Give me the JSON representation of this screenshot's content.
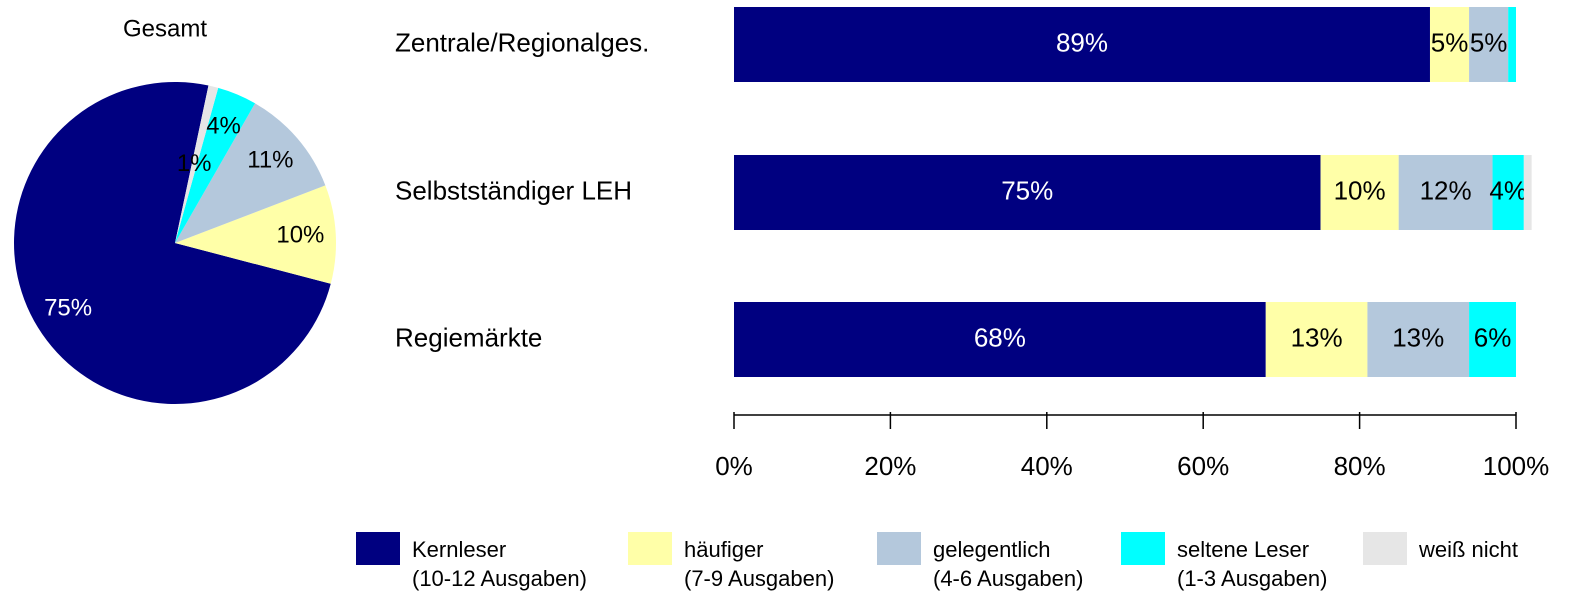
{
  "chart_data": [
    {
      "type": "pie",
      "title": "Gesamt",
      "categories": [
        "Kernleser\n(10-12 Ausgaben)",
        "häufiger\n(7-9 Ausgaben)",
        "gelegentlich\n(4-6 Ausgaben)",
        "seltene Leser\n(1-3 Ausgaben)",
        "weiß nicht"
      ],
      "values": [
        75,
        10,
        11,
        4,
        1
      ],
      "value_labels": [
        "75%",
        "10%",
        "11%",
        "4%",
        "1%"
      ],
      "colors": [
        "#000080",
        "#ffffa8",
        "#b4c8dc",
        "#00ffff",
        "#e6e6e6"
      ]
    },
    {
      "type": "stacked_barh",
      "categories": [
        "Zentrale/Regionalges.",
        "Selbstständiger LEH",
        "Regiemärkte"
      ],
      "series": [
        {
          "name": "Kernleser\n(10-12 Ausgaben)",
          "color": "#000080",
          "values": [
            89,
            75,
            68
          ],
          "value_labels": [
            "89%",
            "75%",
            "68%"
          ]
        },
        {
          "name": "häufiger\n(7-9 Ausgaben)",
          "color": "#ffffa8",
          "values": [
            5,
            10,
            13
          ],
          "value_labels": [
            "5%",
            "10%",
            "13%"
          ]
        },
        {
          "name": "gelegentlich\n(4-6 Ausgaben)",
          "color": "#b4c8dc",
          "values": [
            5,
            12,
            13
          ],
          "value_labels": [
            "5%",
            "12%",
            "13%"
          ]
        },
        {
          "name": "seltene Leser\n(1-3 Ausgaben)",
          "color": "#00ffff",
          "values": [
            1,
            4,
            6
          ],
          "value_labels": [
            null,
            "4%",
            "6%"
          ]
        },
        {
          "name": "weiß nicht",
          "color": "#e6e6e6",
          "values": [
            0,
            1,
            0
          ],
          "value_labels": [
            null,
            null,
            null
          ]
        }
      ],
      "xlim": [
        0,
        100
      ],
      "xticks": [
        {
          "value": 0,
          "label": "0%"
        },
        {
          "value": 20,
          "label": "20%"
        },
        {
          "value": 40,
          "label": "40%"
        },
        {
          "value": 60,
          "label": "60%"
        },
        {
          "value": 80,
          "label": "80%"
        },
        {
          "value": 100,
          "label": "100%"
        }
      ],
      "legend": "bottom"
    }
  ]
}
